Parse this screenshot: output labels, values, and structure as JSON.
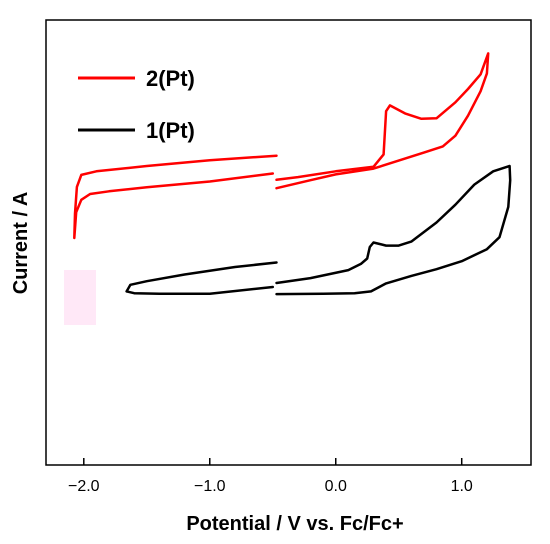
{
  "chart_data": {
    "type": "line",
    "title": "",
    "xlabel": "Potential / V vs. Fc/Fc+",
    "ylabel": "Current / A",
    "xlim": [
      -2.3,
      1.55
    ],
    "x_ticks": [
      -2.0,
      -1.0,
      0.0,
      1.0
    ],
    "x_tick_labels": [
      "−2.0",
      "−1.0",
      "0.0",
      "1.0"
    ],
    "y_ticks_shown": false,
    "legend_position": "top-left",
    "grid": false,
    "series": [
      {
        "name": "2(Pt)",
        "color": "#ff0000",
        "segments": [
          [
            [
              -0.47,
              0.695
            ],
            [
              -1.0,
              0.685
            ],
            [
              -1.5,
              0.672
            ],
            [
              -1.9,
              0.66
            ],
            [
              -2.02,
              0.652
            ],
            [
              -2.055,
              0.625
            ],
            [
              -2.07,
              0.565
            ],
            [
              -2.075,
              0.51
            ],
            [
              -2.06,
              0.568
            ],
            [
              -2.02,
              0.596
            ],
            [
              -1.95,
              0.609
            ],
            [
              -1.8,
              0.615
            ],
            [
              -1.5,
              0.624
            ],
            [
              -1.0,
              0.637
            ],
            [
              -0.5,
              0.655
            ]
          ],
          [
            [
              -0.47,
              0.641
            ],
            [
              -0.3,
              0.647
            ],
            [
              0.0,
              0.66
            ],
            [
              0.3,
              0.67
            ],
            [
              0.38,
              0.698
            ],
            [
              0.4,
              0.795
            ],
            [
              0.43,
              0.808
            ],
            [
              0.55,
              0.79
            ],
            [
              0.68,
              0.778
            ],
            [
              0.8,
              0.779
            ],
            [
              0.95,
              0.815
            ],
            [
              1.05,
              0.845
            ],
            [
              1.15,
              0.878
            ],
            [
              1.21,
              0.925
            ],
            [
              1.2,
              0.88
            ],
            [
              1.15,
              0.84
            ],
            [
              1.05,
              0.785
            ],
            [
              0.95,
              0.74
            ],
            [
              0.85,
              0.716
            ],
            [
              0.7,
              0.702
            ],
            [
              0.5,
              0.684
            ],
            [
              0.3,
              0.666
            ],
            [
              0.0,
              0.653
            ],
            [
              -0.2,
              0.64
            ],
            [
              -0.47,
              0.622
            ]
          ]
        ]
      },
      {
        "name": "1(Pt)",
        "color": "#000000",
        "segments": [
          [
            [
              -0.47,
              0.455
            ],
            [
              -0.8,
              0.445
            ],
            [
              -1.2,
              0.428
            ],
            [
              -1.5,
              0.413
            ],
            [
              -1.63,
              0.405
            ],
            [
              -1.66,
              0.39
            ],
            [
              -1.6,
              0.386
            ],
            [
              -1.4,
              0.385
            ],
            [
              -1.0,
              0.385
            ],
            [
              -0.5,
              0.4
            ]
          ],
          [
            [
              -0.47,
              0.409
            ],
            [
              -0.2,
              0.42
            ],
            [
              0.1,
              0.438
            ],
            [
              0.2,
              0.452
            ],
            [
              0.25,
              0.464
            ],
            [
              0.27,
              0.49
            ],
            [
              0.3,
              0.5
            ],
            [
              0.4,
              0.493
            ],
            [
              0.5,
              0.493
            ],
            [
              0.6,
              0.502
            ],
            [
              0.8,
              0.545
            ],
            [
              0.95,
              0.585
            ],
            [
              1.1,
              0.63
            ],
            [
              1.25,
              0.66
            ],
            [
              1.38,
              0.672
            ],
            [
              1.385,
              0.64
            ],
            [
              1.37,
              0.58
            ],
            [
              1.3,
              0.512
            ],
            [
              1.2,
              0.485
            ],
            [
              1.0,
              0.458
            ],
            [
              0.8,
              0.44
            ],
            [
              0.6,
              0.425
            ],
            [
              0.4,
              0.408
            ],
            [
              0.28,
              0.39
            ],
            [
              0.15,
              0.386
            ],
            [
              -0.1,
              0.385
            ],
            [
              -0.47,
              0.384
            ]
          ]
        ]
      }
    ]
  }
}
